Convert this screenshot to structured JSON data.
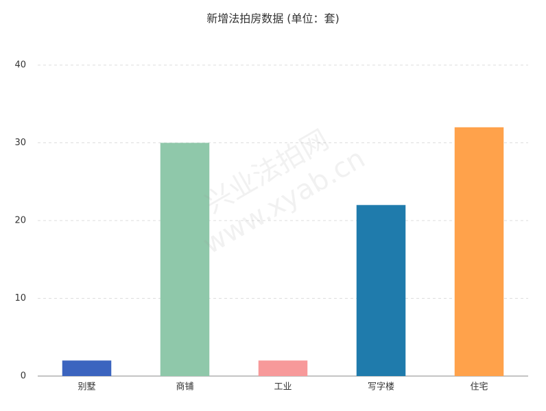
{
  "chart_data": {
    "type": "bar",
    "title": "新增法拍房数据 (单位：套)",
    "categories": [
      "别墅",
      "商铺",
      "工业",
      "写字楼",
      "住宅"
    ],
    "values": [
      2,
      30,
      2,
      22,
      32
    ],
    "colors": [
      "#3b64bf",
      "#8fc8aa",
      "#f7999a",
      "#1f7bac",
      "#ffa24b"
    ],
    "ylim": [
      0,
      40
    ],
    "yticks": [
      0,
      10,
      20,
      30,
      40
    ],
    "grid": true,
    "watermark": [
      "兴业法拍网",
      "www.xyab.cn"
    ]
  }
}
